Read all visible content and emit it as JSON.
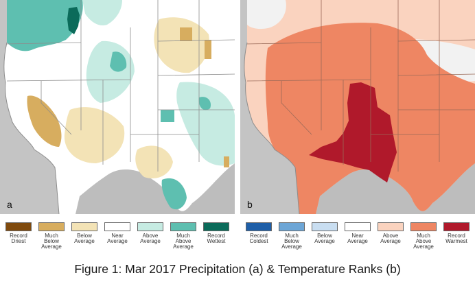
{
  "panels": [
    {
      "letter": "a",
      "legend": [
        {
          "label": "Record\nDriest",
          "color": "#7f4a0e"
        },
        {
          "label": "Much\nBelow\nAverage",
          "color": "#d7ad5f"
        },
        {
          "label": "Below\nAverage",
          "color": "#f3e3b6"
        },
        {
          "label": "Near\nAverage",
          "color": "#ffffff"
        },
        {
          "label": "Above\nAverage",
          "color": "#c6ebe2"
        },
        {
          "label": "Much\nAbove\nAverage",
          "color": "#5ebfb0"
        },
        {
          "label": "Record\nWettest",
          "color": "#0b6b5a"
        }
      ]
    },
    {
      "letter": "b",
      "legend": [
        {
          "label": "Record\nColdest",
          "color": "#1f5fa8"
        },
        {
          "label": "Much\nBelow\nAverage",
          "color": "#6da6d6"
        },
        {
          "label": "Below\nAverage",
          "color": "#c9def1"
        },
        {
          "label": "Near\nAverage",
          "color": "#ffffff"
        },
        {
          "label": "Above\nAverage",
          "color": "#fad3bf"
        },
        {
          "label": "Much\nAbove\nAverage",
          "color": "#ee8663"
        },
        {
          "label": "Record\nWarmest",
          "color": "#b0192b"
        }
      ]
    }
  ],
  "caption": "Figure 1: Mar 2017 Precipitation (a) & Temperature Ranks (b)"
}
